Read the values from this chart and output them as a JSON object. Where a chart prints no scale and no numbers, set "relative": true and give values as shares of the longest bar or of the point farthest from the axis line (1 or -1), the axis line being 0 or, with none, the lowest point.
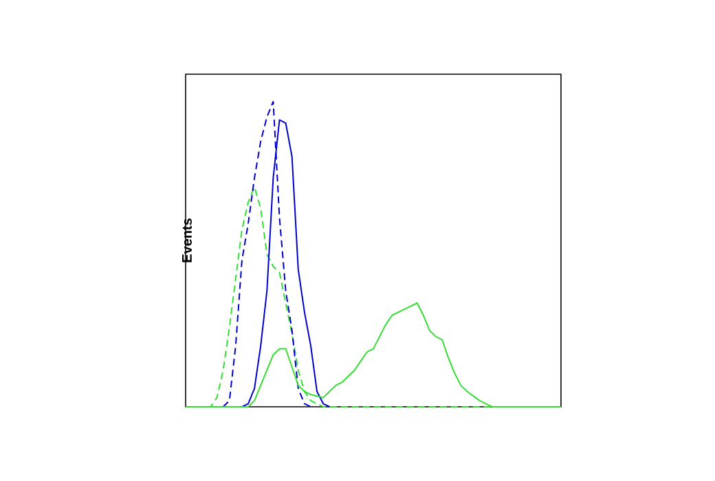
{
  "chart_data": {
    "type": "line",
    "ylabel": "Events",
    "relative": true,
    "marker": "none",
    "categories": [
      null,
      null,
      null,
      null,
      null,
      null,
      null,
      null,
      null,
      null,
      null,
      null,
      null,
      null,
      null,
      null,
      null,
      null,
      null,
      null,
      null,
      null,
      null,
      null,
      null,
      null,
      null,
      null,
      null,
      null,
      null,
      null,
      null,
      null,
      null,
      null,
      null,
      null,
      null,
      null,
      null,
      null,
      null,
      null,
      null,
      null,
      null,
      null,
      null,
      null,
      null,
      null,
      null,
      null,
      null,
      null,
      null,
      null,
      null,
      null,
      null
    ],
    "series": [
      {
        "color": "#33dd33",
        "line_style": "dashed",
        "values": [
          0,
          0,
          0,
          0,
          0,
          0.03,
          0.12,
          0.26,
          0.42,
          0.58,
          0.67,
          0.72,
          0.65,
          0.5,
          0.46,
          0.44,
          0.34,
          0.24,
          0.12,
          0.05,
          0.02,
          0.01,
          0,
          0,
          0,
          0,
          0,
          0,
          0,
          0,
          0,
          0,
          0,
          0,
          0,
          0,
          0,
          0,
          0,
          0,
          0,
          0,
          0,
          0,
          0,
          0,
          0,
          0,
          0,
          0,
          0,
          0,
          0,
          0,
          0,
          0,
          0,
          0,
          0,
          0,
          0
        ]
      },
      {
        "color": "#0000cc",
        "line_style": "dashed",
        "values": [
          null,
          null,
          null,
          null,
          null,
          null,
          0,
          0.02,
          0.2,
          0.48,
          0.6,
          0.75,
          0.87,
          0.95,
          1,
          0.62,
          0.38,
          0.25,
          0.06,
          0.01,
          0,
          null,
          null,
          null,
          null,
          null,
          null,
          null,
          null,
          null,
          null,
          null,
          null,
          null,
          null,
          null,
          null,
          null,
          null,
          null,
          null,
          null,
          null,
          null,
          null,
          null,
          null,
          null,
          null,
          null,
          null,
          null,
          null,
          null,
          null,
          null,
          null,
          null,
          null,
          null,
          null
        ]
      },
      {
        "color": "#0000cc",
        "line_style": "solid",
        "values": [
          null,
          null,
          null,
          null,
          null,
          null,
          null,
          null,
          null,
          0,
          0.01,
          0.06,
          0.2,
          0.38,
          0.75,
          0.94,
          0.93,
          0.82,
          0.45,
          0.31,
          0.2,
          0.05,
          0.01,
          0,
          null,
          null,
          null,
          null,
          null,
          null,
          null,
          null,
          null,
          null,
          null,
          null,
          null,
          null,
          null,
          null,
          null,
          null,
          null,
          null,
          null,
          null,
          null,
          null,
          null,
          null,
          null,
          null,
          null,
          null,
          null,
          null,
          null,
          null,
          null,
          null,
          null
        ]
      },
      {
        "color": "#33dd33",
        "line_style": "solid",
        "values": [
          0,
          0,
          0,
          0,
          0,
          0,
          0,
          0,
          0,
          0,
          0,
          0.02,
          0.07,
          0.12,
          0.17,
          0.19,
          0.19,
          0.13,
          0.07,
          0.05,
          0.04,
          0.035,
          0.03,
          0.05,
          0.07,
          0.08,
          0.1,
          0.12,
          0.15,
          0.18,
          0.19,
          0.23,
          0.27,
          0.3,
          0.31,
          0.32,
          0.33,
          0.34,
          0.3,
          0.25,
          0.23,
          0.22,
          0.16,
          0.11,
          0.07,
          0.05,
          0.035,
          0.02,
          0.01,
          0,
          0,
          0,
          0,
          0,
          0,
          0,
          0,
          0,
          0,
          0,
          0
        ]
      }
    ]
  }
}
